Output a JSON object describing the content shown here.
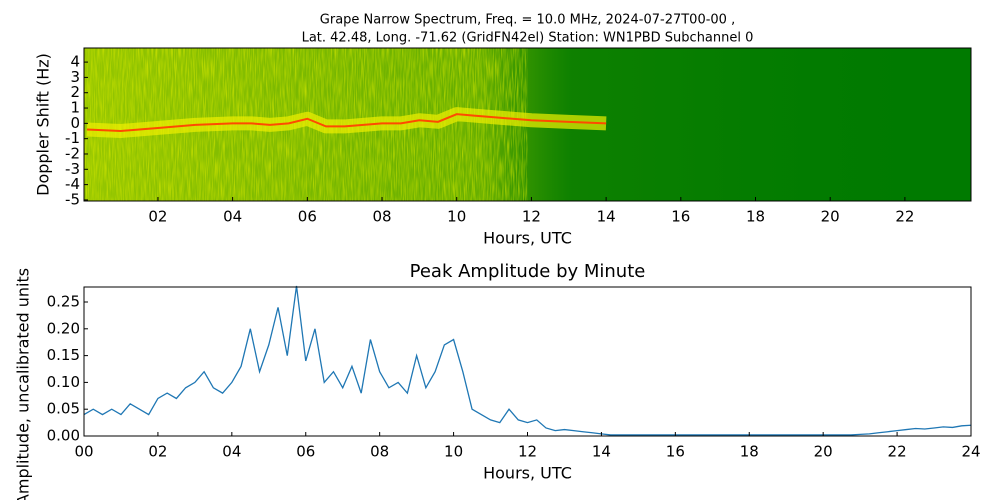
{
  "chart_data": [
    {
      "type": "spectrogram",
      "title": [
        "Grape Narrow Spectrum, Freq. = 10.0 MHz, 2024-07-27T00-00 ,",
        "Lat.  42.48, Long. -71.62 (GridFN42el) Station: WN1PBD Subchannel 0"
      ],
      "xlabel": "Hours, UTC",
      "ylabel": "Doppler Shift (Hz)",
      "xlim": [
        0.02,
        23.77
      ],
      "ylim": [
        -5.07,
        4.92
      ],
      "xticks": [
        {
          "value": 2,
          "label": "02"
        },
        {
          "value": 4,
          "label": "04"
        },
        {
          "value": 6,
          "label": "06"
        },
        {
          "value": 8,
          "label": "08"
        },
        {
          "value": 10,
          "label": "10"
        },
        {
          "value": 12,
          "label": "12"
        },
        {
          "value": 14,
          "label": "14"
        },
        {
          "value": 16,
          "label": "16"
        },
        {
          "value": 18,
          "label": "18"
        },
        {
          "value": 20,
          "label": "20"
        },
        {
          "value": 22,
          "label": "22"
        }
      ],
      "yticks": [
        4,
        3,
        2,
        1,
        0,
        -1,
        -2,
        -3,
        -4,
        -5
      ],
      "background": "#007a00",
      "color": "#ff4a00",
      "x": [
        0.1,
        1,
        2,
        3,
        4,
        4.5,
        5,
        5.5,
        6,
        6.5,
        7,
        7.5,
        8,
        8.5,
        9,
        9.5,
        10,
        10.5,
        11,
        12,
        13,
        14
      ],
      "values": [
        -0.4,
        -0.5,
        -0.3,
        -0.1,
        0,
        0,
        -0.1,
        0,
        0.3,
        -0.2,
        -0.2,
        -0.1,
        0,
        0,
        0.2,
        0.1,
        0.6,
        0.5,
        0.4,
        0.2,
        0.1,
        0
      ]
    },
    {
      "type": "line",
      "title": "Peak Amplitude by Minute",
      "xlabel": "Hours, UTC",
      "ylabel": "Amplitude, uncalibrated units",
      "xlim": [
        0,
        24
      ],
      "ylim": [
        0,
        0.278
      ],
      "xticks": [
        {
          "value": 0,
          "label": "00"
        },
        {
          "value": 2,
          "label": "02"
        },
        {
          "value": 4,
          "label": "04"
        },
        {
          "value": 6,
          "label": "06"
        },
        {
          "value": 8,
          "label": "08"
        },
        {
          "value": 10,
          "label": "10"
        },
        {
          "value": 12,
          "label": "12"
        },
        {
          "value": 14,
          "label": "14"
        },
        {
          "value": 16,
          "label": "16"
        },
        {
          "value": 18,
          "label": "18"
        },
        {
          "value": 20,
          "label": "20"
        },
        {
          "value": 22,
          "label": "22"
        },
        {
          "value": 24,
          "label": "24"
        }
      ],
      "yticks": [
        {
          "value": 0,
          "label": "0.00"
        },
        {
          "value": 0.05,
          "label": "0.05"
        },
        {
          "value": 0.1,
          "label": "0.10"
        },
        {
          "value": 0.15,
          "label": "0.15"
        },
        {
          "value": 0.2,
          "label": "0.20"
        },
        {
          "value": 0.25,
          "label": "0.25"
        }
      ],
      "color": "#1f77b4",
      "x": [
        0,
        0.25,
        0.5,
        0.75,
        1,
        1.25,
        1.5,
        1.75,
        2,
        2.25,
        2.5,
        2.75,
        3,
        3.25,
        3.5,
        3.75,
        4,
        4.25,
        4.5,
        4.75,
        5,
        5.25,
        5.5,
        5.75,
        6,
        6.25,
        6.5,
        6.75,
        7,
        7.25,
        7.5,
        7.75,
        8,
        8.25,
        8.5,
        8.75,
        9,
        9.25,
        9.5,
        9.75,
        10,
        10.25,
        10.5,
        10.75,
        11,
        11.25,
        11.5,
        11.75,
        12,
        12.25,
        12.5,
        12.75,
        13,
        13.25,
        13.5,
        13.75,
        14,
        14.25,
        14.5,
        14.75,
        15,
        15.25,
        15.5,
        15.75,
        16,
        16.25,
        16.5,
        16.75,
        17,
        17.25,
        17.5,
        17.75,
        18,
        18.25,
        18.5,
        18.75,
        19,
        19.25,
        19.5,
        19.75,
        20,
        20.25,
        20.5,
        20.75,
        21,
        21.25,
        21.5,
        21.75,
        22,
        22.25,
        22.5,
        22.75,
        23,
        23.25,
        23.5,
        23.75,
        24
      ],
      "values": [
        0.04,
        0.05,
        0.04,
        0.05,
        0.04,
        0.06,
        0.05,
        0.04,
        0.07,
        0.08,
        0.07,
        0.09,
        0.1,
        0.12,
        0.09,
        0.08,
        0.1,
        0.13,
        0.2,
        0.12,
        0.17,
        0.24,
        0.15,
        0.28,
        0.14,
        0.2,
        0.1,
        0.12,
        0.09,
        0.13,
        0.08,
        0.18,
        0.12,
        0.09,
        0.1,
        0.08,
        0.15,
        0.09,
        0.12,
        0.17,
        0.18,
        0.12,
        0.05,
        0.04,
        0.03,
        0.025,
        0.05,
        0.03,
        0.025,
        0.03,
        0.015,
        0.01,
        0.012,
        0.01,
        0.008,
        0.006,
        0.004,
        0.002,
        0.002,
        0.002,
        0.002,
        0.002,
        0.002,
        0.002,
        0.002,
        0.002,
        0.002,
        0.002,
        0.002,
        0.002,
        0.002,
        0.002,
        0.002,
        0.002,
        0.002,
        0.002,
        0.002,
        0.002,
        0.002,
        0.002,
        0.002,
        0.002,
        0.002,
        0.002,
        0.003,
        0.004,
        0.006,
        0.008,
        0.01,
        0.012,
        0.014,
        0.013,
        0.015,
        0.017,
        0.016,
        0.019,
        0.02
      ]
    }
  ]
}
